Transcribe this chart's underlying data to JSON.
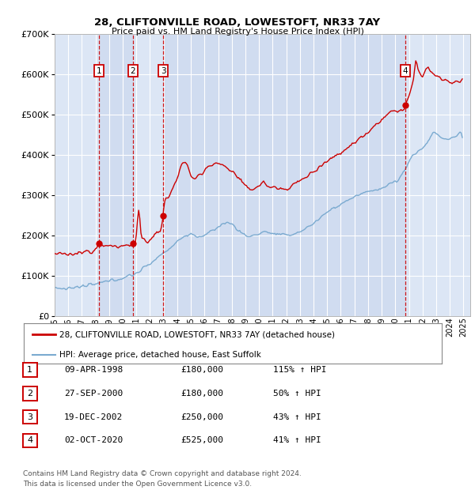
{
  "title_line1": "28, CLIFTONVILLE ROAD, LOWESTOFT, NR33 7AY",
  "title_line2": "Price paid vs. HM Land Registry's House Price Index (HPI)",
  "background_color": "#dce6f5",
  "grid_color": "#c8d4e8",
  "red_color": "#cc0000",
  "blue_color": "#7aaad0",
  "transactions": [
    {
      "num": 1,
      "date_x": 1998.27,
      "price": 180000,
      "label": "09-APR-1998",
      "hpi_pct": "115% ↑ HPI"
    },
    {
      "num": 2,
      "date_x": 2000.74,
      "price": 180000,
      "label": "27-SEP-2000",
      "hpi_pct": "50% ↑ HPI"
    },
    {
      "num": 3,
      "date_x": 2002.96,
      "price": 250000,
      "label": "19-DEC-2002",
      "hpi_pct": "43% ↑ HPI"
    },
    {
      "num": 4,
      "date_x": 2020.75,
      "price": 525000,
      "label": "02-OCT-2020",
      "hpi_pct": "41% ↑ HPI"
    }
  ],
  "legend_label_red": "28, CLIFTONVILLE ROAD, LOWESTOFT, NR33 7AY (detached house)",
  "legend_label_blue": "HPI: Average price, detached house, East Suffolk",
  "footnote_line1": "Contains HM Land Registry data © Crown copyright and database right 2024.",
  "footnote_line2": "This data is licensed under the Open Government Licence v3.0.",
  "xmin": 1995.0,
  "xmax": 2025.5,
  "ymin": 0,
  "ymax": 700000,
  "yticks": [
    0,
    100000,
    200000,
    300000,
    400000,
    500000,
    600000,
    700000
  ]
}
